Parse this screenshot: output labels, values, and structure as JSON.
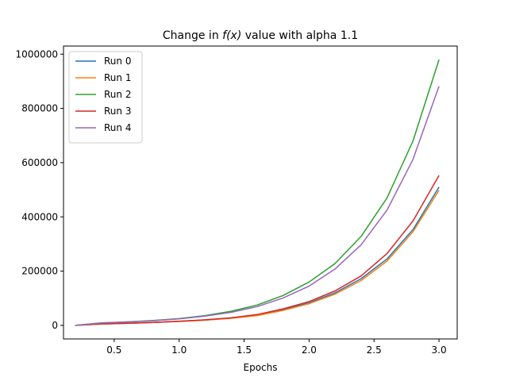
{
  "chart_data": {
    "type": "line",
    "title_prefix": "Change in ",
    "title_math": "f(x)",
    "title_suffix": " value with alpha 1.1",
    "xlabel": "Epochs",
    "ylabel": "",
    "xlim": [
      0.11,
      3.14
    ],
    "ylim": [
      -50000,
      1030000
    ],
    "xticks": [
      0.5,
      1.0,
      1.5,
      2.0,
      2.5,
      3.0
    ],
    "xtick_labels": [
      "0.5",
      "1.0",
      "1.5",
      "2.0",
      "2.5",
      "3.0"
    ],
    "yticks": [
      0,
      200000,
      400000,
      600000,
      800000,
      1000000
    ],
    "ytick_labels": [
      "0",
      "200000",
      "400000",
      "600000",
      "800000",
      "1000000"
    ],
    "grid": false,
    "legend_position": "top-left",
    "x": [
      0.2,
      0.4,
      0.6,
      0.8,
      1.0,
      1.2,
      1.4,
      1.6,
      1.8,
      2.0,
      2.2,
      2.4,
      2.6,
      2.8,
      3.0
    ],
    "series": [
      {
        "name": "Run 0",
        "color": "#1f77b4",
        "values": [
          0,
          5000,
          8000,
          11000,
          15000,
          20000,
          27000,
          38000,
          58000,
          83000,
          120000,
          172000,
          245000,
          353000,
          510000
        ]
      },
      {
        "name": "Run 1",
        "color": "#ff7f0e",
        "values": [
          0,
          5000,
          7500,
          10500,
          14500,
          19000,
          26000,
          36000,
          55000,
          80000,
          115000,
          165000,
          237000,
          345000,
          498000
        ]
      },
      {
        "name": "Run 2",
        "color": "#2ca02c",
        "values": [
          0,
          9000,
          13000,
          18000,
          25000,
          36000,
          52000,
          75000,
          110000,
          160000,
          228000,
          328000,
          470000,
          680000,
          980000
        ]
      },
      {
        "name": "Run 3",
        "color": "#d62728",
        "values": [
          0,
          5500,
          8000,
          11000,
          15000,
          20500,
          28000,
          40000,
          61000,
          88000,
          127000,
          182000,
          265000,
          385000,
          553000
        ]
      },
      {
        "name": "Run 4",
        "color": "#9467bd",
        "values": [
          0,
          8500,
          12500,
          17000,
          24000,
          34000,
          48000,
          69000,
          101000,
          145000,
          208000,
          297000,
          425000,
          612000,
          882000
        ]
      }
    ]
  }
}
